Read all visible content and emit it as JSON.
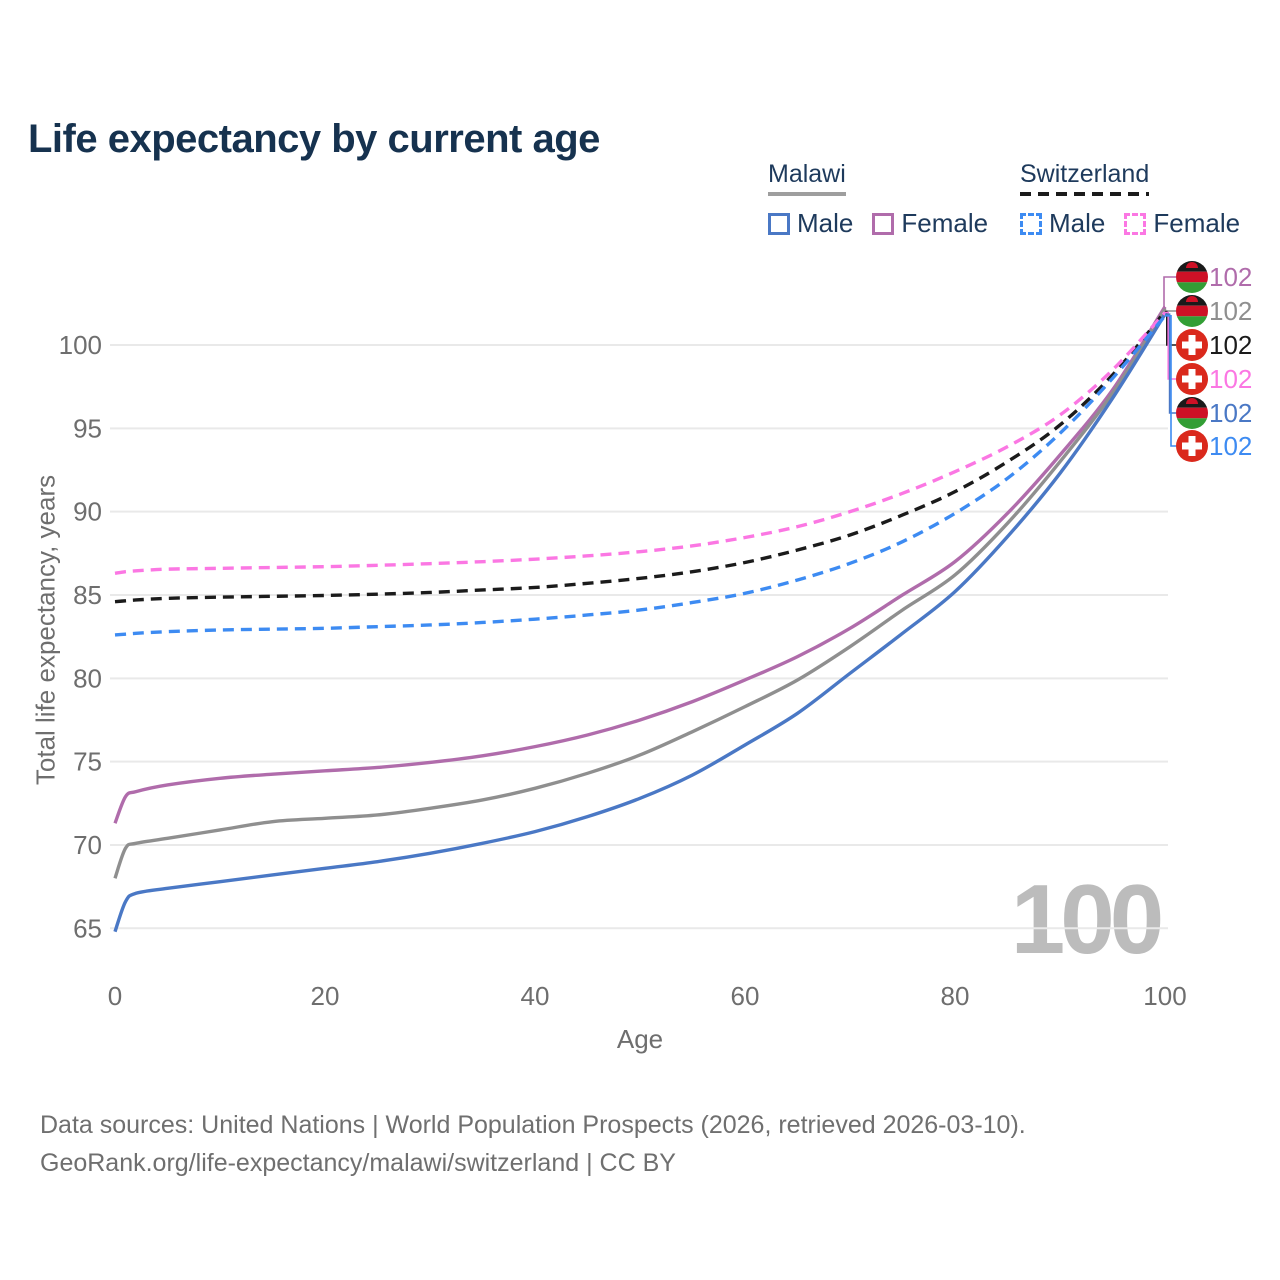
{
  "title": "Life expectancy by current age",
  "legend": {
    "groups": [
      {
        "country": "Malawi",
        "line_style": "solid",
        "line_color": "#9e9e9e",
        "items": [
          {
            "label": "Male",
            "color": "#4a78c5",
            "box_style": "solid"
          },
          {
            "label": "Female",
            "color": "#b06cab",
            "box_style": "solid"
          }
        ]
      },
      {
        "country": "Switzerland",
        "line_style": "dashed",
        "line_color": "#1b1b1b",
        "items": [
          {
            "label": "Male",
            "color": "#3d8bf2",
            "box_style": "dashed"
          },
          {
            "label": "Female",
            "color": "#fb77e3",
            "box_style": "dashed"
          }
        ]
      }
    ]
  },
  "chart_data": {
    "type": "line",
    "title": "Life expectancy by current age",
    "xlabel": "Age",
    "ylabel": "Total life expectancy, years",
    "age_counter": "100",
    "x_ticks": [
      0,
      20,
      40,
      60,
      80,
      100
    ],
    "y_ticks": [
      65,
      70,
      75,
      80,
      85,
      90,
      95,
      100
    ],
    "x_range": [
      0,
      100
    ],
    "y_range": [
      63.5,
      103.5
    ],
    "grid": true,
    "legend_position": "top-right",
    "ages": [
      0,
      1,
      2,
      5,
      10,
      15,
      20,
      25,
      30,
      35,
      40,
      45,
      50,
      55,
      60,
      65,
      70,
      75,
      80,
      85,
      90,
      95,
      100
    ],
    "series": [
      {
        "id": "malawi-female",
        "country": "Malawi",
        "sex": "Female",
        "style": "solid",
        "color": "#b06cab",
        "flag": "mw",
        "end_label": "102",
        "values": [
          71.3,
          72.9,
          73.2,
          73.6,
          74.0,
          74.25,
          74.45,
          74.65,
          74.95,
          75.35,
          75.9,
          76.6,
          77.5,
          78.6,
          79.9,
          81.3,
          83.0,
          85.0,
          87.0,
          89.9,
          93.4,
          97.3,
          102.3
        ]
      },
      {
        "id": "malawi-total",
        "country": "Malawi",
        "sex": "Both",
        "style": "solid",
        "color": "#8f8f8f",
        "flag": "mw",
        "end_label": "102",
        "values": [
          68.0,
          69.8,
          70.1,
          70.4,
          70.9,
          71.4,
          71.6,
          71.8,
          72.2,
          72.7,
          73.4,
          74.3,
          75.4,
          76.8,
          78.3,
          79.9,
          81.9,
          84.1,
          86.2,
          89.3,
          93.0,
          97.1,
          102.15
        ]
      },
      {
        "id": "malawi-male",
        "country": "Malawi",
        "sex": "Male",
        "style": "solid",
        "color": "#4a78c5",
        "flag": "mw",
        "end_label": "102",
        "values": [
          64.8,
          66.6,
          67.1,
          67.4,
          67.8,
          68.2,
          68.6,
          69.0,
          69.5,
          70.1,
          70.8,
          71.7,
          72.8,
          74.2,
          76.0,
          77.9,
          80.3,
          82.7,
          85.2,
          88.5,
          92.3,
          96.8,
          101.85
        ]
      },
      {
        "id": "switzerland-total",
        "country": "Switzerland",
        "sex": "Both",
        "style": "dashed",
        "color": "#1b1b1b",
        "flag": "ch",
        "end_label": "102",
        "values": [
          84.6,
          84.65,
          84.7,
          84.8,
          84.87,
          84.92,
          84.97,
          85.05,
          85.15,
          85.3,
          85.45,
          85.7,
          86.0,
          86.4,
          86.95,
          87.7,
          88.6,
          89.8,
          91.2,
          93.0,
          95.2,
          98.2,
          102.0
        ]
      },
      {
        "id": "switzerland-female",
        "country": "Switzerland",
        "sex": "Female",
        "style": "dashed",
        "color": "#fb77e3",
        "flag": "ch",
        "end_label": "102",
        "values": [
          86.3,
          86.4,
          86.45,
          86.55,
          86.6,
          86.65,
          86.7,
          86.78,
          86.88,
          87.0,
          87.15,
          87.35,
          87.6,
          87.95,
          88.45,
          89.1,
          90.0,
          91.1,
          92.4,
          93.9,
          95.8,
          98.5,
          101.95
        ]
      },
      {
        "id": "switzerland-male",
        "country": "Switzerland",
        "sex": "Male",
        "style": "dashed",
        "color": "#3d8bf2",
        "flag": "ch",
        "end_label": "102",
        "values": [
          82.6,
          82.65,
          82.7,
          82.8,
          82.9,
          82.95,
          83.0,
          83.1,
          83.2,
          83.35,
          83.55,
          83.8,
          84.1,
          84.55,
          85.1,
          85.9,
          86.9,
          88.2,
          89.9,
          92.0,
          94.7,
          98.0,
          101.75
        ]
      }
    ],
    "end_labels_order": [
      "malawi-female",
      "malawi-total",
      "switzerland-total",
      "switzerland-female",
      "malawi-male",
      "switzerland-male"
    ],
    "label_rows_y": [
      277,
      311,
      345,
      379,
      413,
      446
    ],
    "flag_colors": {
      "malawi_black": "#1a1a1a",
      "malawi_red": "#ce1126",
      "malawi_green": "#339e35",
      "swiss_red": "#da291c",
      "swiss_cross": "#ffffff"
    },
    "style_colors": {
      "grid": "#e9e9e9",
      "tick_text": "#6e6e6e",
      "watermark": "#bcbcbc",
      "title": "#16324f",
      "footer": "#6f6f6f"
    }
  },
  "footer": {
    "line1": "Data sources: United Nations | World Population Prospects (2026, retrieved 2026-03-10).",
    "line2": "GeoRank.org/life-expectancy/malawi/switzerland | CC BY"
  }
}
